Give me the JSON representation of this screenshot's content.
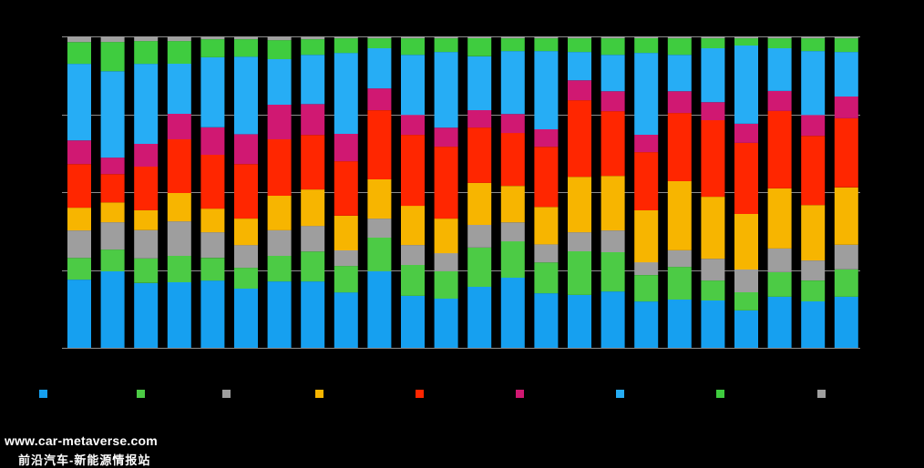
{
  "chart_data": {
    "type": "bar",
    "stacking": "percent",
    "orientation": "vertical",
    "title": "",
    "xlabel": "",
    "ylabel": "",
    "ylim": [
      0,
      100
    ],
    "gridlines": [
      0,
      25,
      50,
      75,
      100
    ],
    "legend_position": "bottom",
    "background": "#000000",
    "gridline_color": "#8C8C8C",
    "bar_count": 24,
    "series": [
      {
        "name": "",
        "color": "#16A0F0",
        "values": [
          21.9,
          24.6,
          20.8,
          21.1,
          21.6,
          19.0,
          21.3,
          21.3,
          17.8,
          24.6,
          16.7,
          15.8,
          19.6,
          22.5,
          17.5,
          17.0,
          18.1,
          14.9,
          15.5,
          15.2,
          12.0,
          16.4,
          14.9,
          16.4
        ]
      },
      {
        "name": "",
        "color": "#4CCB45",
        "values": [
          7.0,
          7.0,
          7.9,
          8.5,
          7.3,
          6.7,
          8.2,
          9.6,
          8.5,
          10.8,
          9.9,
          8.8,
          12.6,
          11.7,
          9.9,
          14.0,
          12.6,
          8.5,
          10.5,
          6.4,
          5.8,
          7.9,
          6.7,
          8.8
        ]
      },
      {
        "name": "",
        "color": "#9E9E9E",
        "values": [
          8.8,
          8.8,
          9.1,
          11.1,
          8.2,
          7.3,
          8.2,
          8.2,
          5.0,
          6.1,
          6.4,
          5.8,
          7.3,
          6.1,
          5.8,
          6.1,
          7.0,
          4.1,
          5.3,
          7.0,
          7.3,
          7.6,
          6.4,
          7.9
        ]
      },
      {
        "name": "",
        "color": "#F7B500",
        "values": [
          7.3,
          6.4,
          6.4,
          9.1,
          7.6,
          8.5,
          11.1,
          11.7,
          11.1,
          12.6,
          12.6,
          11.1,
          13.5,
          11.7,
          12.0,
          17.8,
          17.5,
          16.7,
          22.2,
          19.9,
          17.8,
          19.3,
          17.8,
          18.4
        ]
      },
      {
        "name": "",
        "color": "#FF2600",
        "values": [
          14.0,
          9.1,
          14.0,
          17.3,
          17.3,
          17.5,
          18.1,
          17.5,
          17.5,
          22.2,
          22.8,
          23.1,
          17.8,
          17.0,
          19.3,
          24.6,
          20.8,
          18.7,
          21.9,
          24.6,
          22.8,
          24.9,
          22.2,
          22.2
        ]
      },
      {
        "name": "",
        "color": "#D01872",
        "values": [
          7.6,
          5.3,
          7.3,
          8.2,
          8.8,
          9.6,
          11.1,
          9.9,
          8.8,
          7.0,
          6.4,
          6.1,
          5.6,
          6.1,
          5.6,
          6.4,
          6.4,
          5.6,
          7.0,
          5.8,
          6.1,
          6.4,
          6.7,
          7.0
        ]
      },
      {
        "name": "",
        "color": "#26ADF5",
        "values": [
          24.6,
          27.8,
          25.7,
          16.1,
          22.5,
          24.9,
          14.6,
          15.8,
          26.0,
          12.9,
          19.3,
          24.3,
          17.3,
          20.2,
          25.1,
          9.1,
          11.7,
          26.3,
          11.7,
          17.3,
          25.1,
          13.7,
          20.5,
          14.3
        ]
      },
      {
        "name": "",
        "color": "#3FCC3F",
        "values": [
          7.0,
          9.4,
          7.3,
          7.3,
          5.8,
          5.6,
          6.1,
          5.0,
          4.7,
          3.2,
          5.3,
          4.4,
          5.8,
          4.1,
          4.1,
          4.4,
          5.3,
          4.7,
          5.3,
          3.2,
          2.3,
          3.2,
          4.1,
          4.4
        ]
      },
      {
        "name": "",
        "color": "#A0A0A0",
        "values": [
          1.8,
          1.8,
          1.5,
          1.5,
          0.9,
          0.9,
          1.2,
          0.9,
          0.6,
          0.6,
          0.6,
          0.6,
          0.6,
          0.6,
          0.6,
          0.6,
          0.6,
          0.6,
          0.6,
          0.6,
          0.6,
          0.6,
          0.6,
          0.6
        ]
      }
    ]
  },
  "watermark": {
    "url": "www.car-metaverse.com",
    "name": "前沿汽车-新能源情报站"
  }
}
